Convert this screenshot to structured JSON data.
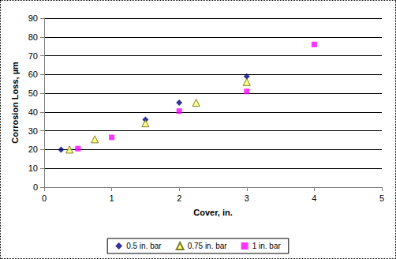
{
  "chart_data": {
    "type": "scatter",
    "x_label": "Cover, in.",
    "y_label": "Corrosion Loss, µm",
    "xlim": [
      0,
      5
    ],
    "xticks": [
      0,
      1,
      2,
      3,
      4,
      5
    ],
    "ylim": [
      0,
      90
    ],
    "yticks": [
      0,
      10,
      20,
      30,
      40,
      50,
      60,
      70,
      80,
      90
    ],
    "grid": true,
    "legend": "bottom",
    "series": [
      {
        "name": "0.5 in. bar",
        "color": "#000080",
        "marker": "diamond",
        "x": [
          0.25,
          1.5,
          2,
          3
        ],
        "values": [
          20,
          36,
          45,
          59
        ]
      },
      {
        "name": "0.75 in. bar",
        "color": "#ffff66",
        "marker": "triangle",
        "x": [
          0.375,
          0.75,
          1.5,
          2.25,
          3
        ],
        "values": [
          20,
          25.5,
          34,
          45,
          56
        ]
      },
      {
        "name": "1 in. bar",
        "color": "#ff00ff",
        "marker": "square",
        "x": [
          0.5,
          1,
          2,
          3,
          4
        ],
        "values": [
          20.5,
          26.5,
          40.5,
          51,
          76
        ]
      }
    ]
  }
}
